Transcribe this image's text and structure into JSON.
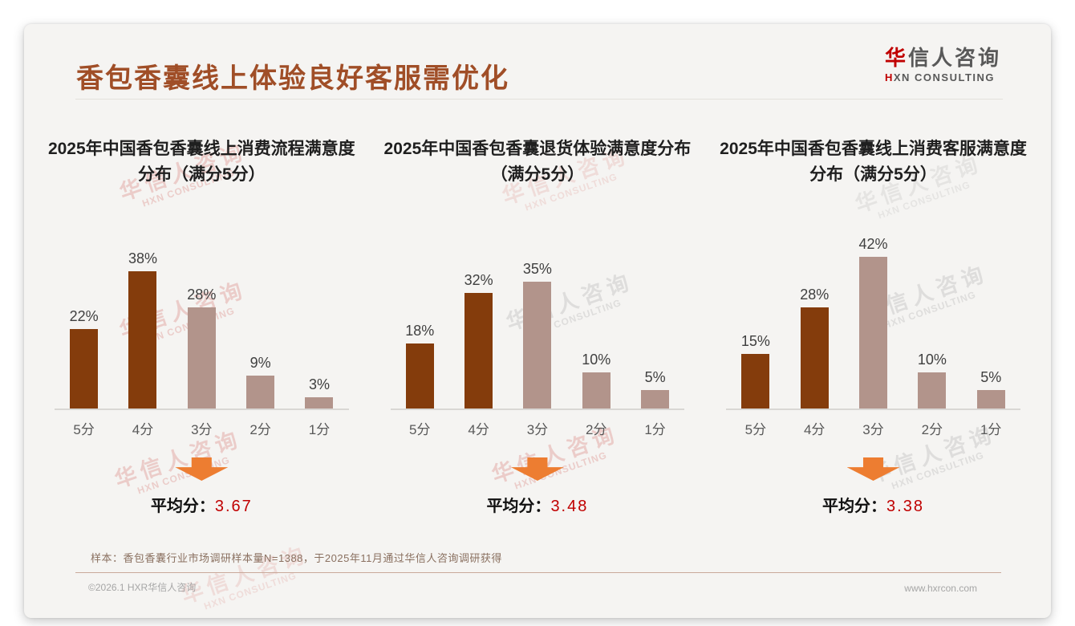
{
  "page": {
    "title": "香包香囊线上体验良好客服需优化",
    "logo": {
      "cn_accent": "华",
      "cn_rest": "信人咨询",
      "en_accent": "H",
      "en_rest": "XN CONSULTING"
    },
    "watermark": {
      "line1": "华信人咨询",
      "line2": "HXN CONSULTING"
    },
    "footnote": "样本：香包香囊行业市场调研样本量N=1388，于2025年11月通过华信人咨询调研获得",
    "footer_left": "©2026.1 HXR华信人咨询",
    "footer_right": "www.hxrcon.com"
  },
  "colors": {
    "title_text": "#a04e27",
    "dark_bar": "#843c0c",
    "light_bar": "#b2948b",
    "arrow_orange": "#ed7d31",
    "average_value_red": "#c00000"
  },
  "chart_data": [
    {
      "type": "bar",
      "title": "2025年中国香包香囊线上消费流程满意度分布（满分5分）",
      "categories": [
        "5分",
        "4分",
        "3分",
        "2分",
        "1分"
      ],
      "values": [
        22,
        38,
        28,
        9,
        3
      ],
      "unit": "%",
      "bar_colors": [
        "#843c0c",
        "#843c0c",
        "#b2948b",
        "#b2948b",
        "#b2948b"
      ],
      "ylim": [
        0,
        45
      ],
      "grid": false,
      "legend": false,
      "average_label": "平均分：",
      "average_value": "3.67"
    },
    {
      "type": "bar",
      "title": "2025年中国香包香囊退货体验满意度分布（满分5分）",
      "categories": [
        "5分",
        "4分",
        "3分",
        "2分",
        "1分"
      ],
      "values": [
        18,
        32,
        35,
        10,
        5
      ],
      "unit": "%",
      "bar_colors": [
        "#843c0c",
        "#843c0c",
        "#b2948b",
        "#b2948b",
        "#b2948b"
      ],
      "ylim": [
        0,
        45
      ],
      "grid": false,
      "legend": false,
      "average_label": "平均分：",
      "average_value": "3.48"
    },
    {
      "type": "bar",
      "title": "2025年中国香包香囊线上消费客服满意度分布（满分5分）",
      "categories": [
        "5分",
        "4分",
        "3分",
        "2分",
        "1分"
      ],
      "values": [
        15,
        28,
        42,
        10,
        5
      ],
      "unit": "%",
      "bar_colors": [
        "#843c0c",
        "#843c0c",
        "#b2948b",
        "#b2948b",
        "#b2948b"
      ],
      "ylim": [
        0,
        45
      ],
      "grid": false,
      "legend": false,
      "average_label": "平均分：",
      "average_value": "3.38"
    }
  ]
}
